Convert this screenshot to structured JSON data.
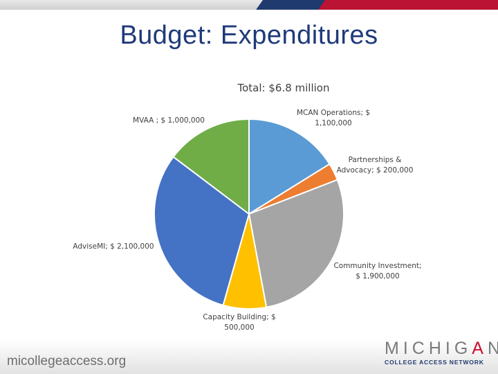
{
  "slide": {
    "title": "Budget:  Expenditures",
    "website": "micollegeaccess.org",
    "logo": {
      "main_before": "MICHIG",
      "main_accent": "A",
      "main_after": "N",
      "sub": "COLLEGE ACCESS NETWORK"
    }
  },
  "colors": {
    "title": "#1f3a7a",
    "navy": "#1f3a6e",
    "red": "#c8102e"
  },
  "chart_data": {
    "type": "pie",
    "title": "Total:  $6.8 million",
    "slices": [
      {
        "label_lines": [
          "MCAN Operations; $",
          "1,100,000"
        ],
        "value": 1100000,
        "color": "#5b9bd5"
      },
      {
        "label_lines": [
          "Partnerships &",
          "Advocacy; $ 200,000"
        ],
        "value": 200000,
        "color": "#ed7d31"
      },
      {
        "label_lines": [
          "Community Investment;",
          "$ 1,900,000"
        ],
        "value": 1900000,
        "color": "#a5a5a5"
      },
      {
        "label_lines": [
          "Capacity Building; $",
          "500,000"
        ],
        "value": 500000,
        "color": "#ffc000"
      },
      {
        "label_lines": [
          "AdviseMI; $ 2,100,000"
        ],
        "value": 2100000,
        "color": "#4472c4"
      },
      {
        "label_lines": [
          "MVAA ; $ 1,000,000"
        ],
        "value": 1000000,
        "color": "#70ad47"
      }
    ],
    "legend": "none",
    "labels": "outside"
  }
}
